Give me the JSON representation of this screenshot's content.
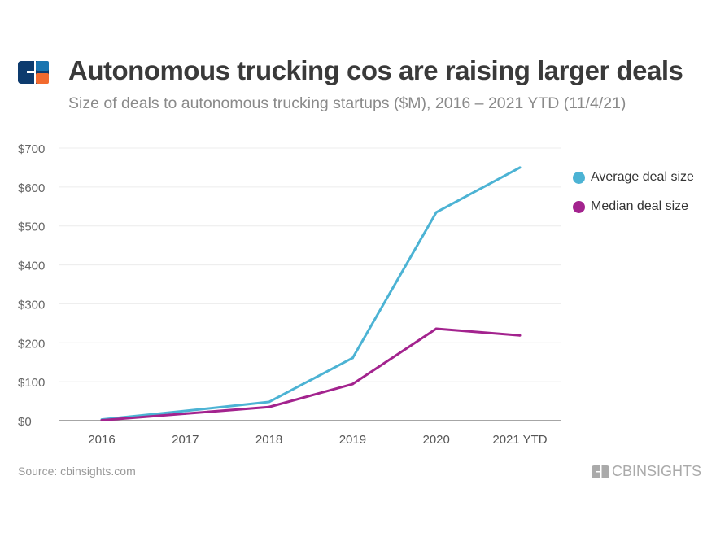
{
  "header": {
    "title": "Autonomous trucking cos are raising larger deals",
    "subtitle": "Size of deals to autonomous trucking startups ($M), 2016 – 2021 YTD (11/4/21)"
  },
  "footer": {
    "source": "Source: cbinsights.com",
    "brand": "CBINSIGHTS"
  },
  "colors": {
    "average": "#4cb3d4",
    "median": "#a3238e",
    "logo_dark": "#0d3b6e",
    "logo_blue": "#1a75b0",
    "logo_orange": "#f26a2e"
  },
  "chart_data": {
    "type": "line",
    "title": "Autonomous trucking cos are raising larger deals",
    "categories": [
      "2016",
      "2017",
      "2018",
      "2019",
      "2020",
      "2021 YTD"
    ],
    "y_ticks": [
      "$0",
      "$100",
      "$200",
      "$300",
      "$400",
      "$500",
      "$600",
      "$700"
    ],
    "ylim": [
      0,
      700
    ],
    "grid": true,
    "legend_placement": "right",
    "series": [
      {
        "name": "Average deal size",
        "color": "#4cb3d4",
        "values": [
          3,
          25,
          48,
          161,
          535,
          650
        ]
      },
      {
        "name": "Median deal size",
        "color": "#a3238e",
        "values": [
          1,
          18,
          35,
          94,
          236,
          219
        ]
      }
    ]
  }
}
